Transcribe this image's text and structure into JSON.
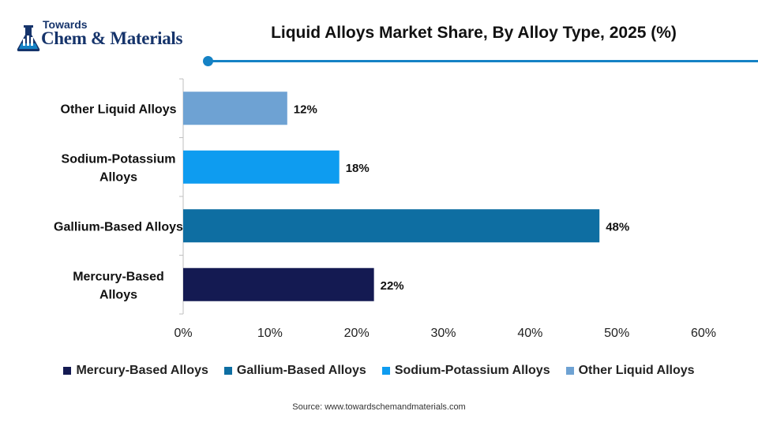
{
  "brand": {
    "small_text": "Towards",
    "name": "Chem & Materials",
    "logo_icon": "flask-chart-icon",
    "color": "#16346b"
  },
  "accent_color": "#1582c5",
  "chart_data": {
    "type": "bar",
    "orientation": "horizontal",
    "title": "Liquid Alloys Market Share, By Alloy Type, 2025 (%)",
    "categories": [
      "Mercury-Based Alloys",
      "Gallium-Based Alloys",
      "Sodium-Potassium Alloys",
      "Other Liquid Alloys"
    ],
    "category_axis_labels": [
      [
        "Mercury-Based",
        "Alloys"
      ],
      [
        "Gallium-Based Alloys"
      ],
      [
        "Sodium-Potassium",
        "Alloys"
      ],
      [
        "Other Liquid Alloys"
      ]
    ],
    "values": [
      22,
      48,
      18,
      12
    ],
    "value_labels": [
      "22%",
      "48%",
      "18%",
      "12%"
    ],
    "colors": [
      "#141a52",
      "#0e6ea2",
      "#0e9cf0",
      "#6ea2d3"
    ],
    "xlim": [
      0,
      60
    ],
    "x_ticks": [
      0,
      10,
      20,
      30,
      40,
      50,
      60
    ],
    "x_tick_labels": [
      "0%",
      "10%",
      "20%",
      "30%",
      "40%",
      "50%",
      "60%"
    ],
    "xlabel": "",
    "ylabel": "",
    "grid": false,
    "legend_position": "bottom",
    "legend": [
      "Mercury-Based Alloys",
      "Gallium-Based Alloys",
      "Sodium-Potassium Alloys",
      "Other Liquid Alloys"
    ]
  },
  "source": "Source: www.towardschemandmaterials.com"
}
